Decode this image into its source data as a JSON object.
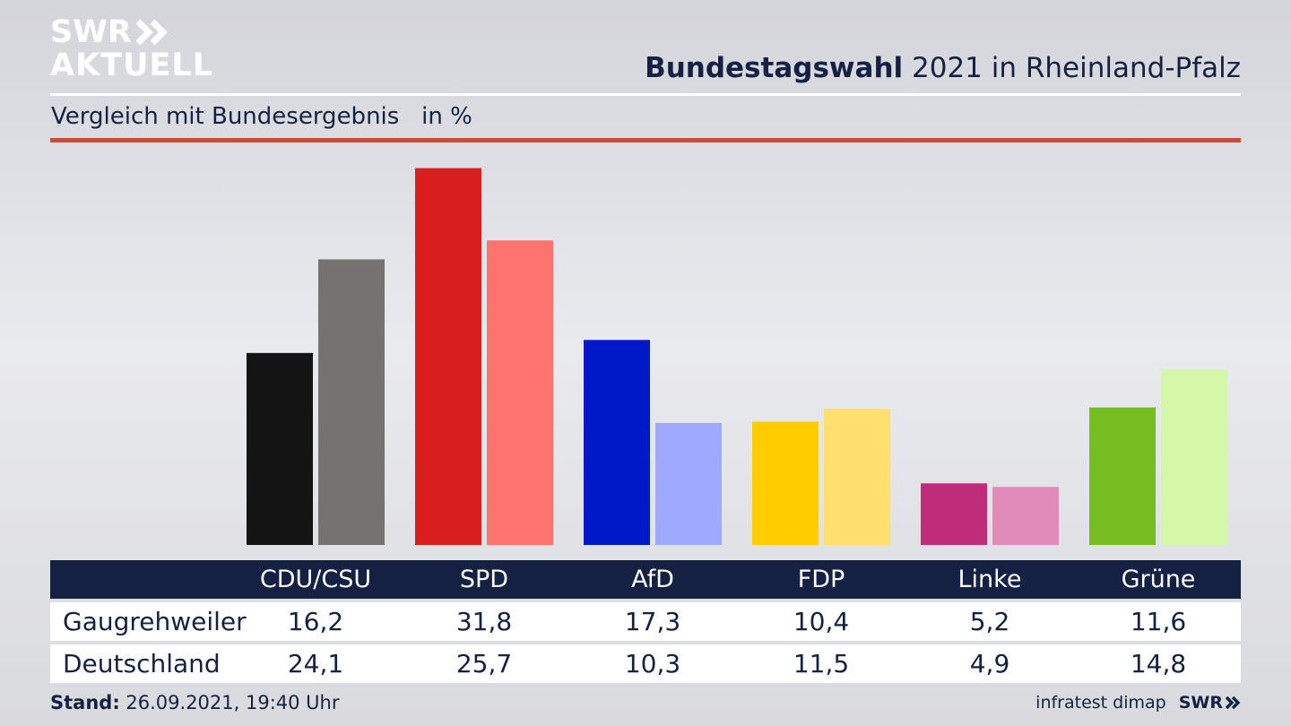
{
  "logo": {
    "line1": "SWR",
    "line2": "AKTUELL"
  },
  "header": {
    "title_bold": "Bundestagswahl",
    "title_rest": " 2021 in Rheinland-Pfalz"
  },
  "subtitle": "Vergleich mit Bundesergebnis   in %",
  "chart_data": {
    "type": "bar",
    "title": "Bundestagswahl 2021 in Rheinland-Pfalz",
    "subtitle": "Vergleich mit Bundesergebnis   in %",
    "categories": [
      "CDU/CSU",
      "SPD",
      "AfD",
      "FDP",
      "Linke",
      "Grüne"
    ],
    "series": [
      {
        "name": "Gaugrehweiler",
        "values": [
          16.2,
          31.8,
          17.3,
          10.4,
          5.2,
          11.6
        ]
      },
      {
        "name": "Deutschland",
        "values": [
          24.1,
          25.7,
          10.3,
          11.5,
          4.9,
          14.8
        ]
      }
    ],
    "value_labels": {
      "Gaugrehweiler": [
        "16,2",
        "31,8",
        "17,3",
        "10,4",
        "5,2",
        "11,6"
      ],
      "Deutschland": [
        "24,1",
        "25,7",
        "10,3",
        "11,5",
        "4,9",
        "14,8"
      ]
    },
    "colors": {
      "Gaugrehweiler": [
        "#141414",
        "#d81e1e",
        "#0019c8",
        "#ffcc00",
        "#bf2d78",
        "#76bd22"
      ],
      "Deutschland": [
        "#747372",
        "#ff736e",
        "#9ea9ff",
        "#ffe06e",
        "#e18bbb",
        "#d4f7a8"
      ]
    },
    "ylim": [
      0,
      32
    ],
    "xlabel": "",
    "ylabel": "",
    "grid": false,
    "legend": "table-below"
  },
  "footer": {
    "stand_label": "Stand:",
    "stand_value": " 26.09.2021, 19:40 Uhr",
    "source": "infratest dimap",
    "brand": "SWR"
  }
}
